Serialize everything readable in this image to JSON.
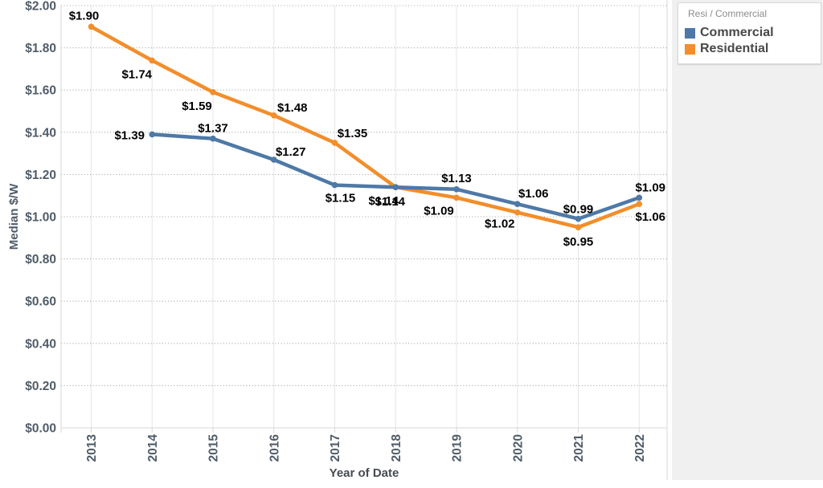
{
  "chart_data": {
    "type": "line",
    "title": "",
    "xlabel": "Year of Date",
    "ylabel": "Median $/W",
    "categories": [
      "2013",
      "2014",
      "2015",
      "2016",
      "2017",
      "2018",
      "2019",
      "2020",
      "2021",
      "2022"
    ],
    "series": [
      {
        "name": "Commercial",
        "color": "#4e79a7",
        "values": [
          null,
          1.39,
          1.37,
          1.27,
          1.15,
          1.14,
          1.13,
          1.06,
          0.99,
          1.09
        ],
        "labels": [
          "",
          "$1.39",
          "$1.37",
          "$1.27",
          "$1.15",
          "$1.14",
          "$1.13",
          "$1.06",
          "$0.99",
          "$1.09"
        ]
      },
      {
        "name": "Residential",
        "color": "#f28e2b",
        "values": [
          1.9,
          1.74,
          1.59,
          1.48,
          1.35,
          1.14,
          1.09,
          1.02,
          0.95,
          1.06
        ],
        "labels": [
          "$1.90",
          "$1.74",
          "$1.59",
          "$1.48",
          "$1.35",
          "$1.14",
          "$1.09",
          "$1.02",
          "$0.95",
          "$1.06"
        ]
      }
    ],
    "ylim": [
      0,
      2.0
    ],
    "y_tick_step": 0.2,
    "y_tick_labels": [
      "$0.00",
      "$0.20",
      "$0.40",
      "$0.60",
      "$0.80",
      "$1.00",
      "$1.20",
      "$1.40",
      "$1.60",
      "$1.80",
      "$2.00"
    ],
    "grid": {
      "horizontal": "dotted",
      "vertical": "solid-light"
    },
    "legend_position": "top-right"
  },
  "legend": {
    "title": "Resi / Commercial"
  },
  "colors": {
    "plot_border": "#d7d7d7",
    "h_grid": "#a3a3a3",
    "v_grid": "#e5e5e5",
    "panel_bg": "#f0f0f0",
    "axis_text": "#505c68",
    "axis_title_text": "#474b51",
    "data_label": "#000000",
    "legend_title_text": "#8c8c8c",
    "legend_item_text": "#484848"
  }
}
